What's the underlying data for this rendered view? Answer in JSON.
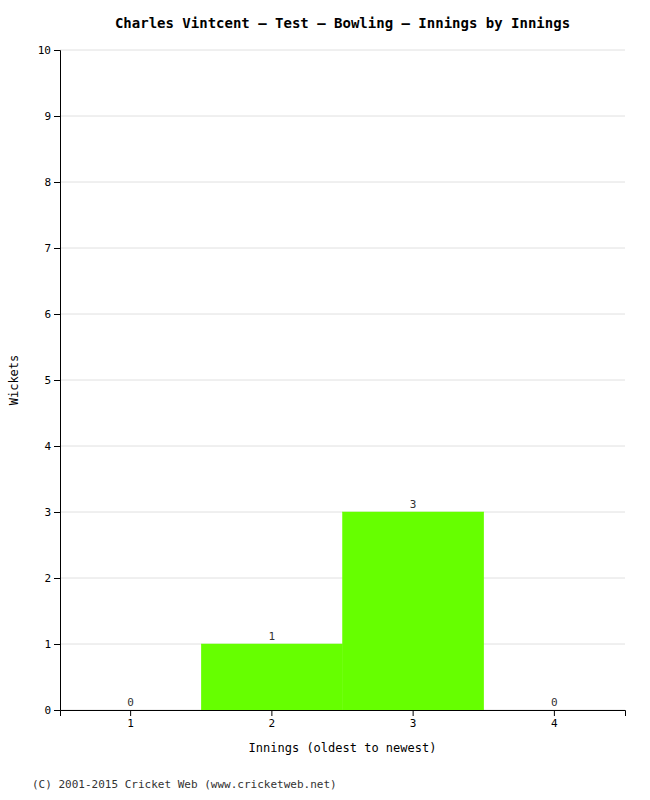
{
  "chart_data": {
    "type": "bar",
    "title": "Charles Vintcent – Test – Bowling – Innings by Innings",
    "xlabel": "Innings (oldest to newest)",
    "ylabel": "Wickets",
    "categories": [
      1,
      2,
      3,
      4
    ],
    "values": [
      0,
      1,
      3,
      0
    ],
    "color": "#66ff00",
    "ylim": [
      0,
      10
    ],
    "yticks": [
      0,
      1,
      2,
      3,
      4,
      5,
      6,
      7,
      8,
      9,
      10
    ],
    "grid": true,
    "data_labels": true,
    "footer": "(C) 2001-2015 Cricket Web (www.cricketweb.net)"
  }
}
